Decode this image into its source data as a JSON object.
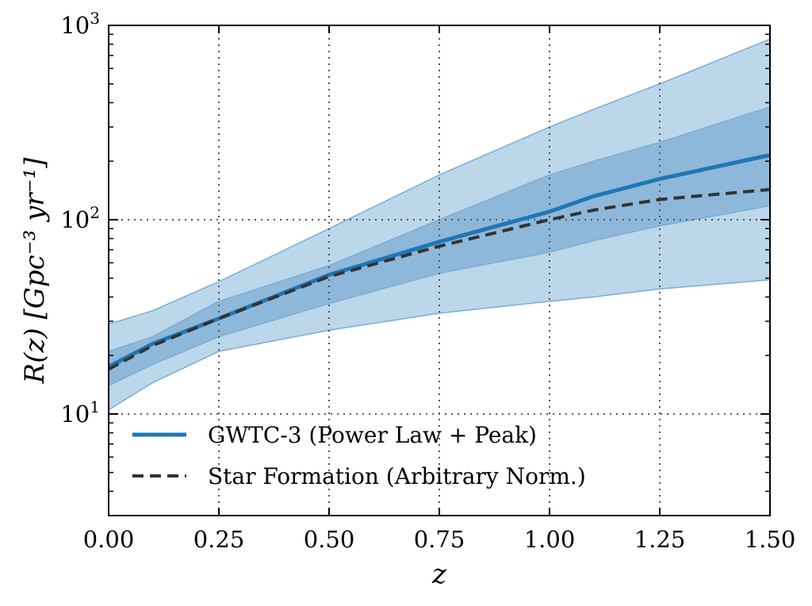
{
  "chart_data": {
    "type": "line",
    "xlabel": "z",
    "ylabel": "R(z) [Gpc⁻³ yr⁻¹]",
    "xlim": [
      0,
      1.5
    ],
    "ylim": [
      3,
      1000
    ],
    "yscale": "log",
    "grid": true,
    "legend_position": "lower-left",
    "x_ticks": [
      "0.00",
      "0.25",
      "0.50",
      "0.75",
      "1.00",
      "1.25",
      "1.50"
    ],
    "y_ticks": [
      {
        "base": "10",
        "exp": "1",
        "value": 10
      },
      {
        "base": "10",
        "exp": "2",
        "value": 100
      },
      {
        "base": "10",
        "exp": "3",
        "value": 1000
      }
    ],
    "x": [
      0,
      0.1,
      0.25,
      0.5,
      0.75,
      1.0,
      1.1,
      1.25,
      1.5
    ],
    "bands": [
      {
        "level": "outer",
        "lower": [
          10.5,
          14.5,
          21,
          27,
          33,
          38,
          40,
          44,
          49
        ],
        "upper": [
          29,
          34,
          48,
          90,
          170,
          300,
          370,
          500,
          850
        ]
      },
      {
        "level": "inner",
        "lower": [
          14,
          18,
          25,
          37,
          53,
          68,
          78,
          93,
          118
        ],
        "upper": [
          21,
          25,
          38,
          58,
          100,
          170,
          200,
          250,
          380
        ]
      }
    ],
    "series": [
      {
        "name": "GWTC-3 (Power Law + Peak)",
        "style": "solid",
        "color": "#1f77b4",
        "values": [
          17.5,
          23,
          31,
          52,
          77,
          110,
          132,
          162,
          215
        ]
      },
      {
        "name": "Star Formation (Arbitrary Norm.)",
        "style": "dashed",
        "color": "#333333",
        "values": [
          17,
          22.5,
          31,
          51,
          73,
          100,
          112,
          127,
          143
        ]
      }
    ],
    "colors": {
      "band_outer": "#bcd6ea",
      "band_inner": "#8db8da",
      "band_edge": "#7aaed5",
      "grid": "#555555"
    }
  }
}
